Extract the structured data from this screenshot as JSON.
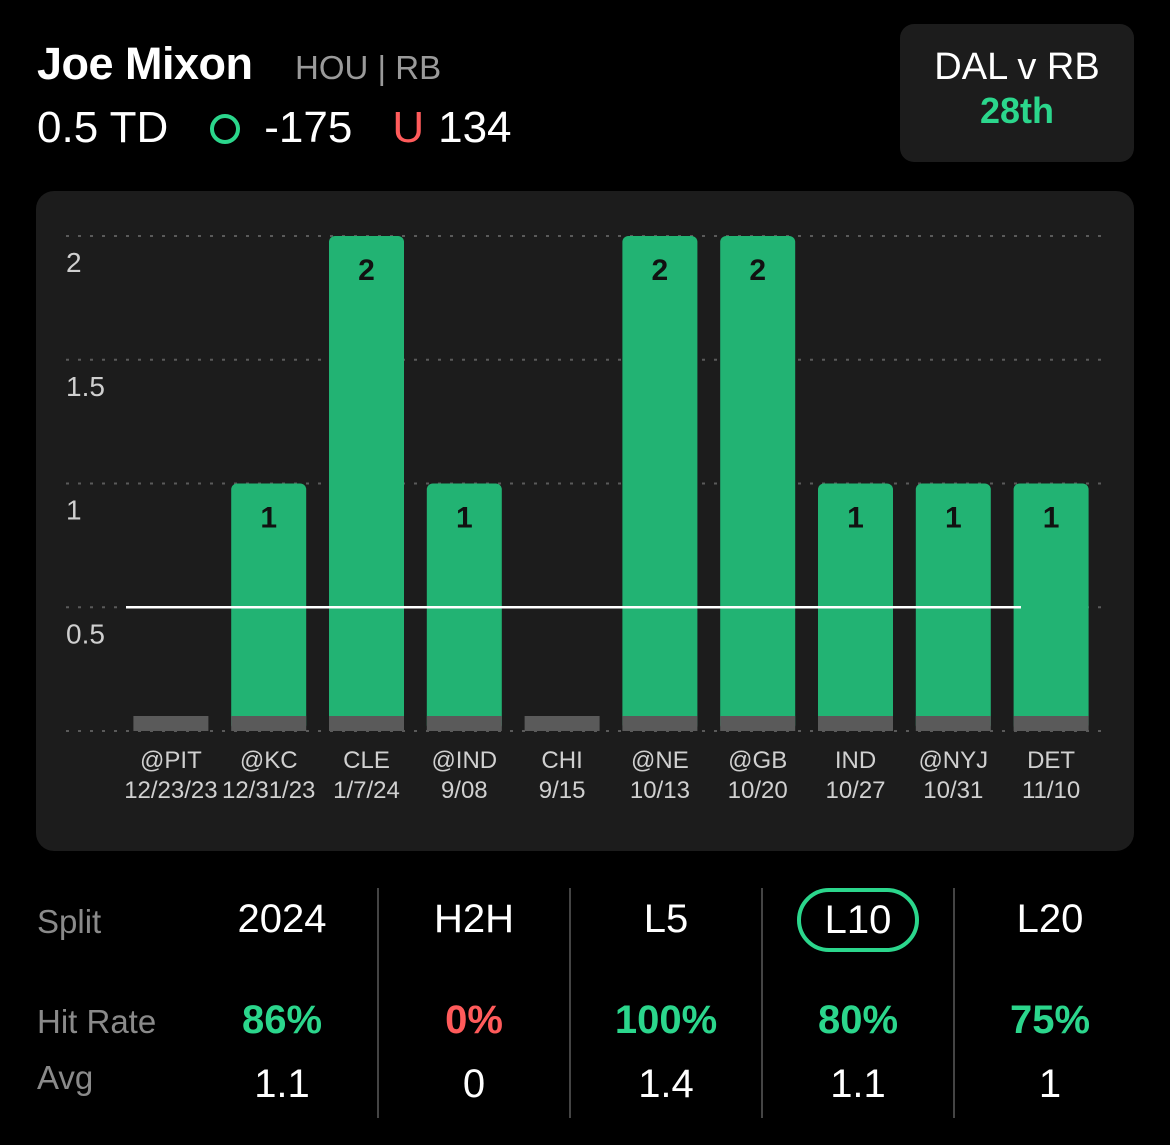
{
  "player": {
    "name": "Joe Mixon",
    "meta": "HOU | RB"
  },
  "line": {
    "prop": "0.5 TD",
    "over_value": "-175",
    "under_label": "U",
    "under_value": "134"
  },
  "matchup": {
    "label": "DAL v RB",
    "rank": "28th"
  },
  "colors": {
    "hit": "#2bd68c",
    "bar": "#22b373",
    "miss": "#ff5b5b",
    "base": "#5a5a5a"
  },
  "chart_data": {
    "type": "bar",
    "yticks": [
      "2",
      "1.5",
      "1",
      "0.5"
    ],
    "ylim": [
      0,
      2
    ],
    "threshold": 0.5,
    "categories": [
      "@PIT",
      "@KC",
      "CLE",
      "@IND",
      "CHI",
      "@NE",
      "@GB",
      "IND",
      "@NYJ",
      "DET"
    ],
    "dates": [
      "12/23/23",
      "12/31/23",
      "1/7/24",
      "9/08",
      "9/15",
      "10/13",
      "10/20",
      "10/27",
      "10/31",
      "11/10"
    ],
    "values": [
      0,
      1,
      2,
      1,
      0,
      2,
      2,
      1,
      1,
      1
    ],
    "value_labels": [
      "",
      "1",
      "2",
      "1",
      "",
      "2",
      "2",
      "1",
      "1",
      "1"
    ]
  },
  "splits": {
    "row_labels": {
      "split": "Split",
      "hit_rate": "Hit Rate",
      "avg": "Avg"
    },
    "columns": [
      {
        "label": "2024",
        "hit_rate": "86%",
        "avg": "1.1",
        "hit_color": "#2bd68c",
        "selected": false
      },
      {
        "label": "H2H",
        "hit_rate": "0%",
        "avg": "0",
        "hit_color": "#ff5b5b",
        "selected": false
      },
      {
        "label": "L5",
        "hit_rate": "100%",
        "avg": "1.4",
        "hit_color": "#2bd68c",
        "selected": false
      },
      {
        "label": "L10",
        "hit_rate": "80%",
        "avg": "1.1",
        "hit_color": "#2bd68c",
        "selected": true
      },
      {
        "label": "L20",
        "hit_rate": "75%",
        "avg": "1",
        "hit_color": "#2bd68c",
        "selected": false
      }
    ]
  }
}
